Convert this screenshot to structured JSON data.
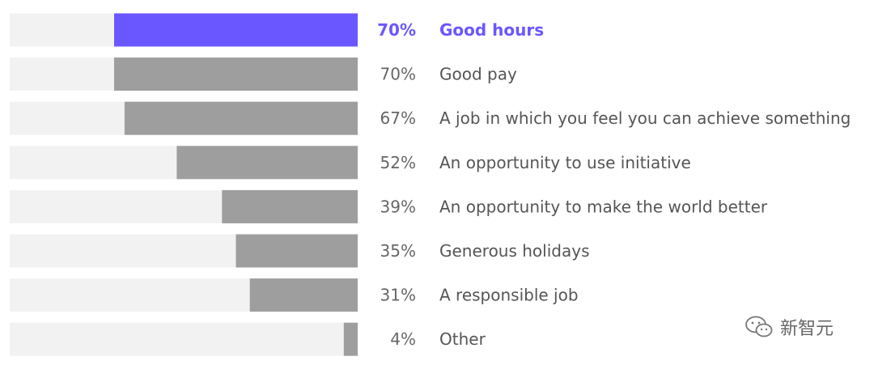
{
  "chart_data": {
    "type": "bar",
    "orientation": "horizontal",
    "categories": [
      "Good hours",
      "Good pay",
      "A job in which you feel you can achieve something",
      "An opportunity to use initiative",
      "An opportunity to make the world better",
      "Generous holidays",
      "A responsible job",
      "Other"
    ],
    "values": [
      70,
      70,
      67,
      52,
      39,
      35,
      31,
      4
    ],
    "value_labels": [
      "70%",
      "70%",
      "67%",
      "52%",
      "39%",
      "35%",
      "31%",
      "4%"
    ],
    "xlim": [
      0,
      100
    ],
    "highlight_index": 0,
    "colors": {
      "bar": "#9e9e9e",
      "highlight": "#6b57ff",
      "track": "#f2f2f2"
    },
    "grid": false,
    "legend": "none"
  },
  "watermark": {
    "icon": "wechat-icon",
    "text": "新智元"
  }
}
